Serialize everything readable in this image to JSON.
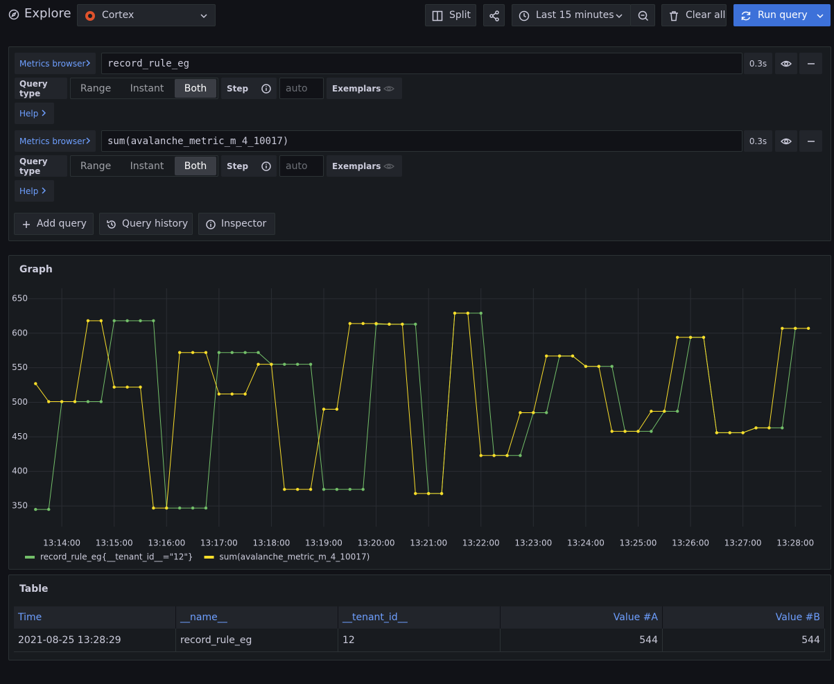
{
  "header": {
    "title": "Explore",
    "datasource": "Cortex",
    "split": "Split",
    "time_range": "Last 15 minutes",
    "clear_all": "Clear all",
    "run_query": "Run query"
  },
  "queries": [
    {
      "metrics_browser": "Metrics browser",
      "expr": "record_rule_eg",
      "duration": "0.3s",
      "query_type_label": "Query type",
      "query_types": [
        "Range",
        "Instant",
        "Both"
      ],
      "selected": "Both",
      "step_label": "Step",
      "step_placeholder": "auto",
      "exemplars": "Exemplars",
      "help": "Help"
    },
    {
      "metrics_browser": "Metrics browser",
      "expr": "sum(avalanche_metric_m_4_10017)",
      "duration": "0.3s",
      "query_type_label": "Query type",
      "query_types": [
        "Range",
        "Instant",
        "Both"
      ],
      "selected": "Both",
      "step_label": "Step",
      "step_placeholder": "auto",
      "exemplars": "Exemplars",
      "help": "Help"
    }
  ],
  "actions": [
    "Add query",
    "Query history",
    "Inspector"
  ],
  "chart_data": {
    "type": "line",
    "title": "Graph",
    "x": [
      13.5,
      13.75,
      14,
      14.25,
      14.5,
      14.75,
      15,
      15.25,
      15.5,
      15.75,
      16,
      16.25,
      16.5,
      16.75,
      17,
      17.25,
      17.5,
      17.75,
      18,
      18.25,
      18.5,
      18.75,
      19,
      19.25,
      19.5,
      19.75,
      20,
      20.25,
      20.5,
      20.75,
      21,
      21.25,
      21.5,
      21.75,
      22,
      22.25,
      22.5,
      22.75,
      23,
      23.25,
      23.5,
      23.75,
      24,
      24.25,
      24.5,
      24.75,
      25,
      25.25,
      25.5,
      25.75,
      26,
      26.25,
      26.5,
      26.75,
      27,
      27.25,
      27.5,
      27.75,
      28,
      28.25
    ],
    "series": [
      {
        "name": "record_rule_eg{__tenant_id__=\"12\"}",
        "color": "#73bf69",
        "values": [
          345,
          345,
          501,
          501,
          501,
          501,
          618,
          618,
          618,
          618,
          347,
          347,
          347,
          347,
          572,
          572,
          572,
          572,
          555,
          555,
          555,
          555,
          374,
          374,
          374,
          374,
          613,
          613,
          613,
          613,
          368,
          368,
          629,
          629,
          629,
          423,
          423,
          423,
          485,
          485,
          567,
          567,
          552,
          552,
          552,
          458,
          458,
          458,
          487,
          487,
          594,
          594,
          456,
          456,
          456,
          463,
          463,
          463,
          607,
          null
        ]
      },
      {
        "name": "sum(avalanche_metric_m_4_10017)",
        "color": "#fade2a",
        "values": [
          527,
          501,
          501,
          501,
          618,
          618,
          522,
          522,
          522,
          347,
          347,
          572,
          572,
          572,
          512,
          512,
          512,
          555,
          555,
          374,
          374,
          374,
          490,
          490,
          614,
          614,
          614,
          613,
          613,
          368,
          368,
          368,
          629,
          629,
          423,
          423,
          423,
          485,
          485,
          567,
          567,
          567,
          552,
          552,
          458,
          458,
          458,
          487,
          487,
          594,
          594,
          594,
          456,
          456,
          456,
          463,
          463,
          607,
          607,
          607
        ]
      }
    ],
    "xlim": [
      13.35,
      28.5
    ],
    "xticks": [
      {
        "value": 14,
        "label": "13:14:00"
      },
      {
        "value": 15,
        "label": "13:15:00"
      },
      {
        "value": 16,
        "label": "13:16:00"
      },
      {
        "value": 17,
        "label": "13:17:00"
      },
      {
        "value": 18,
        "label": "13:18:00"
      },
      {
        "value": 19,
        "label": "13:19:00"
      },
      {
        "value": 20,
        "label": "13:20:00"
      },
      {
        "value": 21,
        "label": "13:21:00"
      },
      {
        "value": 22,
        "label": "13:22:00"
      },
      {
        "value": 23,
        "label": "13:23:00"
      },
      {
        "value": 24,
        "label": "13:24:00"
      },
      {
        "value": 25,
        "label": "13:25:00"
      },
      {
        "value": 26,
        "label": "13:26:00"
      },
      {
        "value": 27,
        "label": "13:27:00"
      },
      {
        "value": 28,
        "label": "13:28:00"
      }
    ],
    "ylim": [
      320,
      665
    ],
    "yticks": [
      350,
      400,
      450,
      500,
      550,
      600,
      650
    ],
    "grid": true,
    "legend": "bottom-left"
  },
  "table": {
    "title": "Table",
    "columns": [
      "Time",
      "__name__",
      "__tenant_id__",
      "Value #A",
      "Value #B"
    ],
    "rows": [
      [
        "2021-08-25 13:28:29",
        "record_rule_eg",
        12,
        544,
        544
      ]
    ]
  }
}
